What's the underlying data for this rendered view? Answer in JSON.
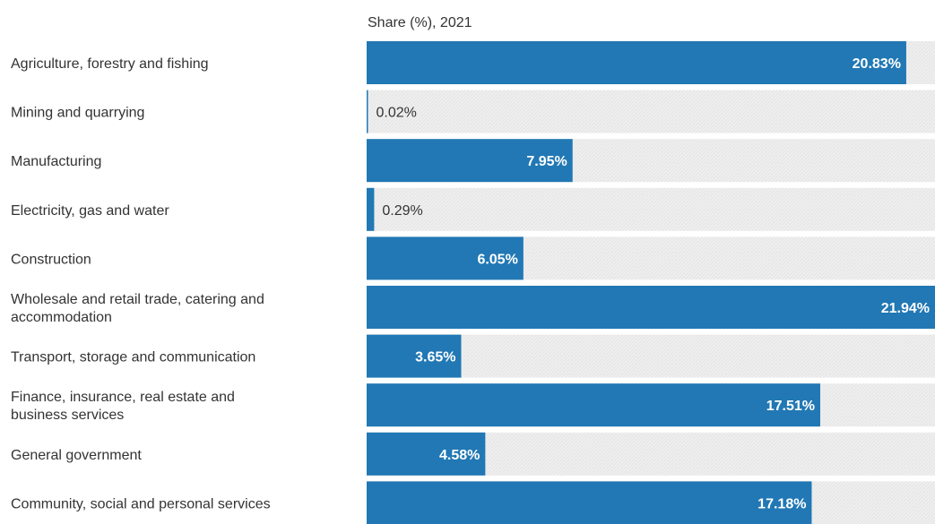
{
  "chart_data": {
    "type": "bar",
    "orientation": "horizontal",
    "series_label": "Share (%), 2021",
    "categories": [
      [
        "Agriculture, forestry and fishing"
      ],
      [
        "Mining and quarrying"
      ],
      [
        "Manufacturing"
      ],
      [
        "Electricity, gas and water"
      ],
      [
        "Construction"
      ],
      [
        "Wholesale and retail trade, catering and",
        "accommodation"
      ],
      [
        "Transport, storage and communication"
      ],
      [
        "Finance, insurance, real estate and",
        "business services"
      ],
      [
        "General government"
      ],
      [
        "Community, social and personal services"
      ]
    ],
    "values": [
      20.83,
      0.02,
      7.95,
      0.29,
      6.05,
      21.94,
      3.65,
      17.51,
      4.58,
      17.18
    ],
    "value_labels": [
      "20.83%",
      "0.02%",
      "7.95%",
      "0.29%",
      "6.05%",
      "21.94%",
      "3.65%",
      "17.51%",
      "4.58%",
      "17.18%"
    ],
    "xlim": [
      0,
      21.94
    ],
    "colors": {
      "bar": "#2178b4",
      "track": "#efefef",
      "text": "#333333",
      "label_inside": "#ffffff"
    }
  }
}
